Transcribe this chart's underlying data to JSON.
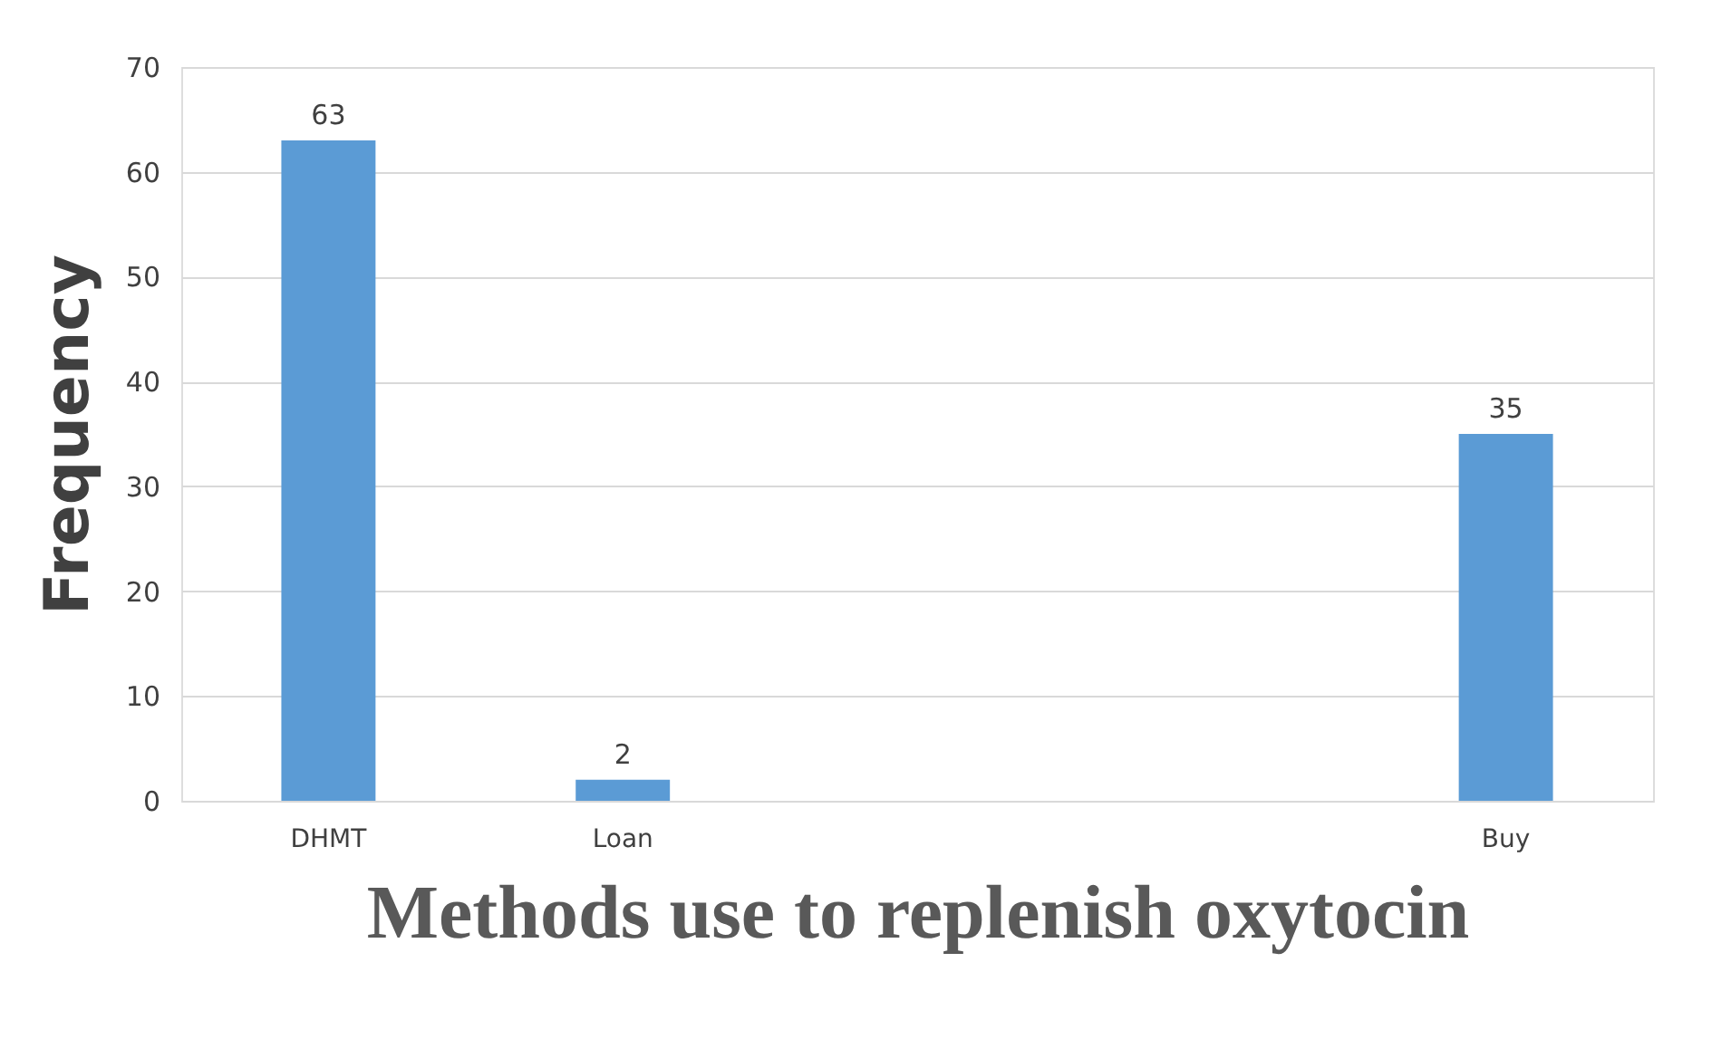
{
  "chart_data": {
    "type": "bar",
    "xlabel": "Methods use to replenish oxytocin",
    "ylabel": "Frequency",
    "categories": [
      "DHMT",
      "Loan",
      null,
      null,
      "Buy"
    ],
    "values": [
      63,
      2,
      null,
      null,
      35
    ],
    "color": "#5b9bd5",
    "ylim": [
      0,
      70
    ],
    "yticks": [
      0,
      10,
      20,
      30,
      40,
      50,
      60,
      70
    ],
    "grid": "y",
    "data_labels": true
  }
}
